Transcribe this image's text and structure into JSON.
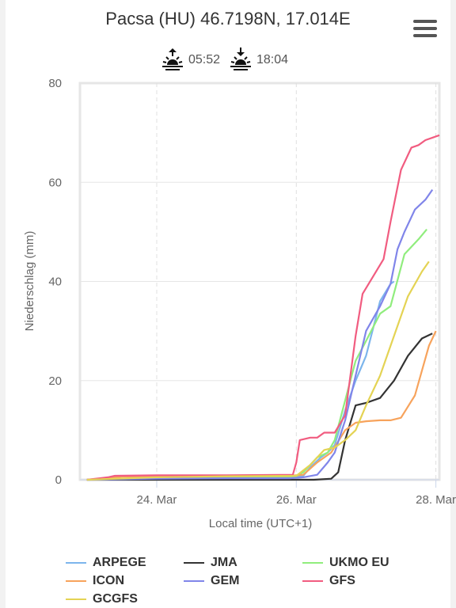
{
  "header": {
    "title": "Pacsa (HU) 46.7198N, 17.014E",
    "sunrise": "05:52",
    "sunset": "18:04"
  },
  "chart_data": {
    "type": "line",
    "title": "Pacsa (HU) 46.7198N, 17.014E",
    "xlabel": "Local time (UTC+1)",
    "ylabel": "Niederschlag (mm)",
    "x_unit": "days since 23. Mar 00:00",
    "xlim": [
      -0.1,
      5.05
    ],
    "ylim": [
      0,
      80
    ],
    "x_ticks": [
      {
        "x": 1,
        "label": "24. Mar"
      },
      {
        "x": 3,
        "label": "26. Mar"
      },
      {
        "x": 5,
        "label": "28. Mar"
      }
    ],
    "y_ticks": [
      0,
      20,
      40,
      60,
      80
    ],
    "grid": true,
    "legend_position": "bottom",
    "series": [
      {
        "name": "ARPEGE",
        "color": "#7cb5ec",
        "x": [
          0,
          0.5,
          1,
          1.5,
          2,
          2.5,
          3,
          3.1,
          3.2,
          3.35,
          3.45,
          3.55,
          3.7,
          3.85,
          4.0,
          4.2,
          4.35,
          4.4
        ],
        "y": [
          0,
          0.2,
          0.4,
          0.5,
          0.5,
          0.5,
          0.5,
          0.8,
          2.5,
          4.5,
          5.5,
          7.0,
          14.0,
          20.0,
          25.0,
          36.0,
          39.5,
          40.0
        ]
      },
      {
        "name": "JMA",
        "color": "#333333",
        "x": [
          0,
          1,
          2,
          3,
          3.25,
          3.5,
          3.6,
          3.7,
          3.85,
          4.0,
          4.2,
          4.4,
          4.6,
          4.8,
          4.95
        ],
        "y": [
          0,
          0,
          0,
          0,
          0,
          0.2,
          1.5,
          8.0,
          15.0,
          15.5,
          16.5,
          20.0,
          25.0,
          28.5,
          29.5
        ]
      },
      {
        "name": "UKMO EU",
        "color": "#90ed7d",
        "x": [
          0,
          1,
          2,
          2.8,
          3,
          3.1,
          3.3,
          3.45,
          3.55,
          3.7,
          3.85,
          4.0,
          4.2,
          4.35,
          4.55,
          4.75,
          4.87
        ],
        "y": [
          0,
          0.3,
          0.4,
          0.5,
          0.7,
          1.5,
          4.5,
          5.5,
          8.0,
          16.0,
          24.0,
          28.0,
          33.5,
          35.0,
          45.5,
          48.5,
          50.5
        ]
      },
      {
        "name": "ICON",
        "color": "#f7a35c",
        "x": [
          0,
          0.5,
          1,
          1.5,
          2,
          2.5,
          2.9,
          3.1,
          3.3,
          3.5,
          3.7,
          3.85,
          4.0,
          4.2,
          4.35,
          4.5,
          4.7,
          4.9,
          5.0
        ],
        "y": [
          0,
          0.6,
          0.7,
          0.8,
          0.8,
          0.8,
          0.8,
          1.0,
          3.5,
          5.5,
          10.0,
          11.5,
          11.8,
          12.0,
          12.0,
          12.5,
          17.0,
          27.0,
          30.0
        ]
      },
      {
        "name": "GEM",
        "color": "#8085e9",
        "x": [
          0,
          1,
          2,
          2.9,
          3.1,
          3.3,
          3.45,
          3.55,
          3.7,
          3.85,
          4.0,
          4.2,
          4.35,
          4.45,
          4.55,
          4.7,
          4.85,
          4.95
        ],
        "y": [
          0,
          0.2,
          0.3,
          0.3,
          0.5,
          1.0,
          3.5,
          5.5,
          12.0,
          21.0,
          30.0,
          35.0,
          39.5,
          46.5,
          50.0,
          54.5,
          56.5,
          58.5
        ]
      },
      {
        "name": "GFS",
        "color": "#f15c80",
        "x": [
          0,
          0.3,
          0.4,
          1,
          2,
          2.95,
          3.0,
          3.05,
          3.2,
          3.3,
          3.4,
          3.55,
          3.7,
          3.85,
          3.95,
          4.1,
          4.25,
          4.35,
          4.5,
          4.65,
          4.75,
          4.85,
          4.95,
          5.05
        ],
        "y": [
          0,
          0.5,
          0.8,
          0.9,
          0.9,
          1.0,
          3.5,
          8.0,
          8.5,
          8.5,
          9.5,
          9.5,
          13.0,
          29.0,
          37.5,
          41.0,
          44.5,
          52.0,
          62.5,
          67.0,
          67.5,
          68.5,
          69.0,
          69.5
        ]
      },
      {
        "name": "GCGFS",
        "color": "#e4d354",
        "x": [
          0,
          1,
          2,
          3,
          3.2,
          3.4,
          3.55,
          3.7,
          3.85,
          4.0,
          4.2,
          4.4,
          4.6,
          4.8,
          4.9
        ],
        "y": [
          0,
          0.5,
          0.7,
          0.8,
          3.0,
          6.0,
          6.5,
          8.0,
          10.0,
          15.0,
          21.0,
          29.0,
          37.0,
          42.0,
          44.0
        ]
      }
    ]
  }
}
